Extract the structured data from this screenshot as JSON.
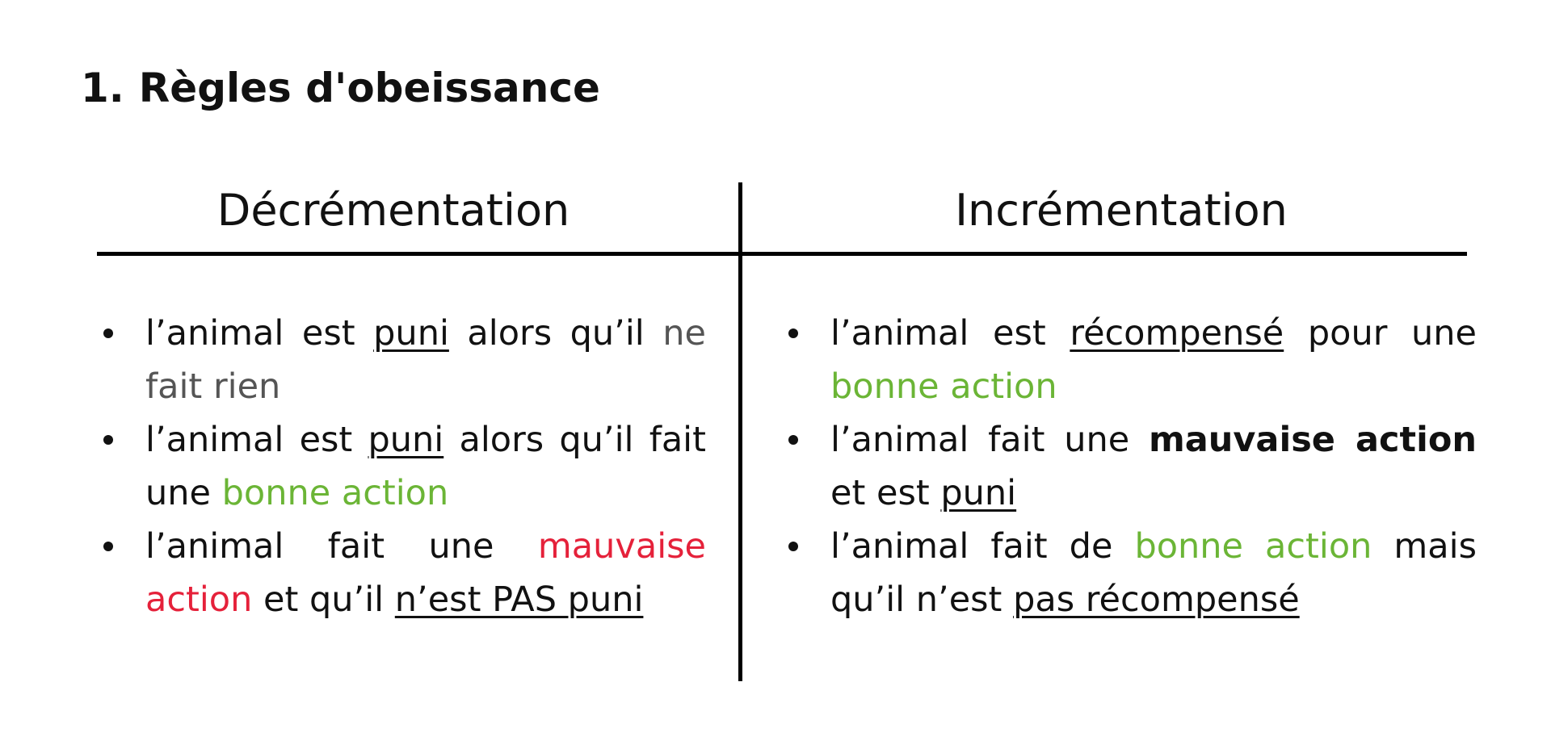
{
  "title": {
    "number": "1.",
    "text": "Règles d'obeissance"
  },
  "columns": [
    {
      "header": "Décrémentation",
      "items": [
        [
          {
            "text": "l’animal est "
          },
          {
            "text": "puni",
            "style": "underline"
          },
          {
            "text": " alors qu’il "
          },
          {
            "text": "ne fait rien",
            "style": "gray"
          }
        ],
        [
          {
            "text": "l’animal est "
          },
          {
            "text": "puni",
            "style": "underline"
          },
          {
            "text": " alors qu’il fait une "
          },
          {
            "text": "bonne action",
            "style": "green"
          }
        ],
        [
          {
            "text": "l’animal fait une "
          },
          {
            "text": "mauvaise action",
            "style": "red"
          },
          {
            "text": " et qu’il "
          },
          {
            "text": "n’est PAS puni",
            "style": "underline"
          }
        ]
      ]
    },
    {
      "header": "Incrémentation",
      "items": [
        [
          {
            "text": "l’animal est "
          },
          {
            "text": "récompensé",
            "style": "underline"
          },
          {
            "text": " pour une "
          },
          {
            "text": "bonne action",
            "style": "green"
          }
        ],
        [
          {
            "text": "l’animal fait une "
          },
          {
            "text": "mauvaise action",
            "style": "bold"
          },
          {
            "text": " et est "
          },
          {
            "text": "puni",
            "style": "underline"
          }
        ],
        [
          {
            "text": "l’animal fait de "
          },
          {
            "text": "bonne action",
            "style": "green"
          },
          {
            "text": " mais qu’il n’est "
          },
          {
            "text": "pas récompensé",
            "style": "underline"
          }
        ]
      ]
    }
  ],
  "colors": {
    "green": "#6bb536",
    "red": "#e5213a",
    "gray": "#555555",
    "text": "#111111"
  }
}
